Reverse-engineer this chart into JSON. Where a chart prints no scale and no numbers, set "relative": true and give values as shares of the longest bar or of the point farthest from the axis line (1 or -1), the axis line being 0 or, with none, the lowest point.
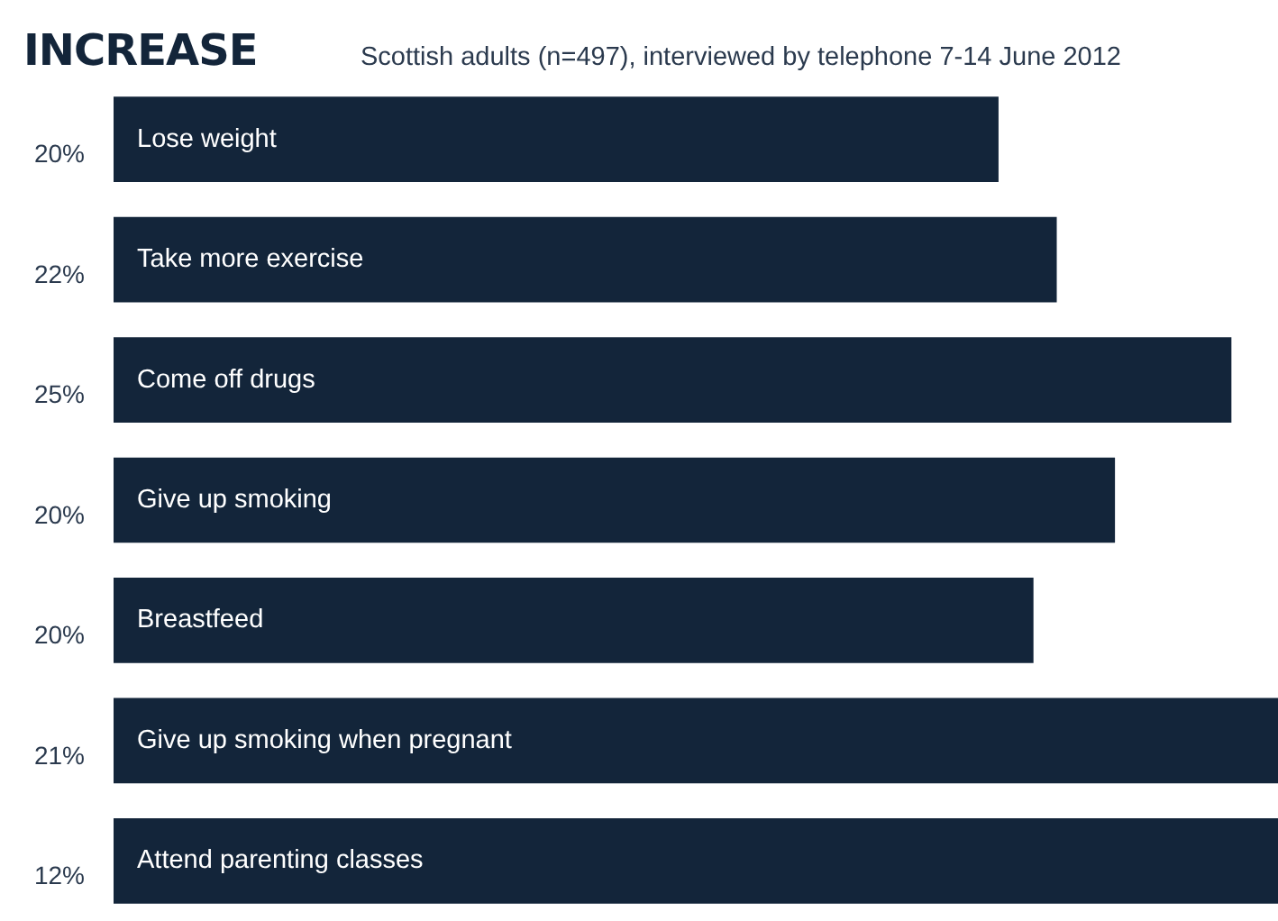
{
  "chart_data": {
    "type": "bar",
    "orientation": "horizontal",
    "relative": true,
    "title": "INCREASE",
    "subtitle": "Scottish adults (n=497), interviewed by telephone 7-14 June 2012",
    "categories": [
      "Lose weight",
      "Take more exercise",
      "Come off drugs",
      "Give up smoking",
      "Breastfeed",
      "Give up smoking when pregnant",
      "Attend parenting classes"
    ],
    "values": [
      0.76,
      0.81,
      0.96,
      0.86,
      0.79,
      1,
      1
    ],
    "annotations": [
      "20%",
      "22%",
      "25%",
      "20%",
      "20%",
      "21%",
      "12%"
    ],
    "color": "#13253a",
    "legend": false
  }
}
